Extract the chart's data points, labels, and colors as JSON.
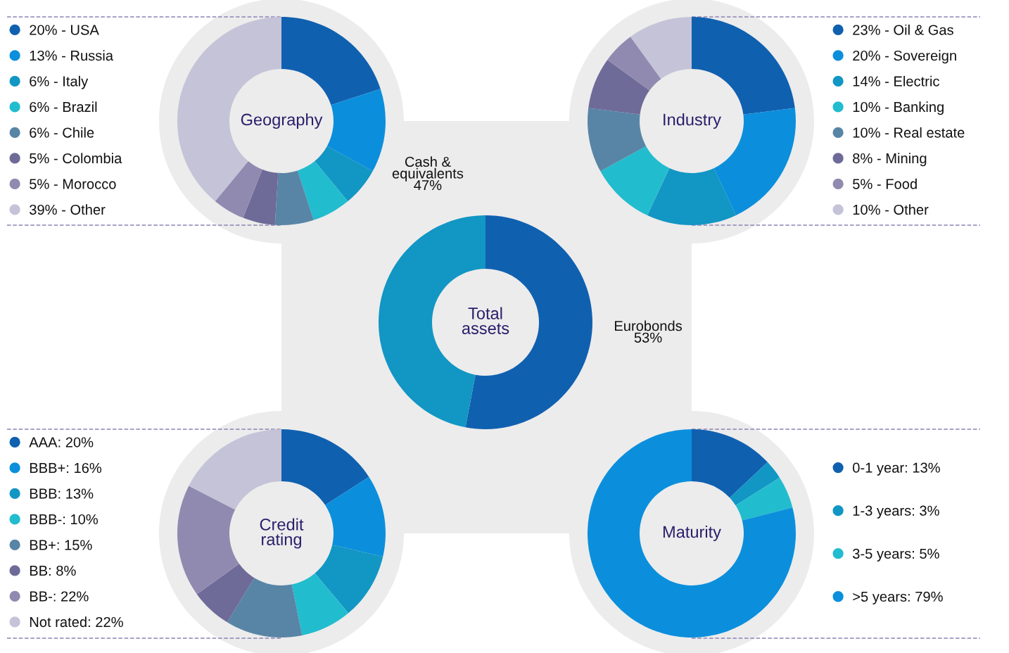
{
  "chart_data": [
    {
      "type": "donut",
      "title": "Geography",
      "legend": "left",
      "categories": [
        "20% - USA",
        "13% - Russia",
        "6% - Italy",
        "6% - Brazil",
        "6% - Chile",
        "5% - Colombia",
        "5% - Morocco",
        "39% - Other"
      ],
      "values": [
        20,
        13,
        6,
        6,
        6,
        5,
        5,
        39
      ],
      "colors": [
        "#1060b0",
        "#0b8fdc",
        "#1296c4",
        "#22bccf",
        "#5885a6",
        "#6e6b99",
        "#918ab0",
        "#c5c3d8"
      ]
    },
    {
      "type": "donut",
      "title": "Industry",
      "legend": "right",
      "categories": [
        "23% - Oil & Gas",
        "20% - Sovereign",
        "14% - Electric",
        "10% - Banking",
        "10% - Real estate",
        "8% - Mining",
        "5% - Food",
        "10% - Other"
      ],
      "values": [
        23,
        20,
        14,
        10,
        10,
        8,
        5,
        10
      ],
      "colors": [
        "#1060b0",
        "#0b8fdc",
        "#1296c4",
        "#22bccf",
        "#5885a6",
        "#6e6b99",
        "#918ab0",
        "#c5c3d8"
      ]
    },
    {
      "type": "donut",
      "title": "Total\nassets",
      "categories": [
        "Eurobonds",
        "Cash &\nequivalents"
      ],
      "values": [
        53,
        47
      ],
      "value_labels": [
        "53%",
        "47%"
      ],
      "colors": [
        "#1060b0",
        "#1296c4"
      ]
    },
    {
      "type": "donut",
      "title": "Credit\nrating",
      "legend": "left",
      "categories": [
        "AAA: 20%",
        "BBB+: 16%",
        "BBB: 13%",
        "BBB-: 10%",
        "BB+: 15%",
        "BB: 8%",
        "BB-: 22%",
        "Not rated: 22%"
      ],
      "values": [
        20,
        16,
        13,
        10,
        15,
        8,
        22,
        22
      ],
      "colors": [
        "#1060b0",
        "#0b8fdc",
        "#1296c4",
        "#22bccf",
        "#5885a6",
        "#6e6b99",
        "#918ab0",
        "#c5c3d8"
      ]
    },
    {
      "type": "donut",
      "title": "Maturity",
      "legend": "right",
      "categories": [
        "0-1 year: 13%",
        "1-3 years: 3%",
        "3-5 years: 5%",
        ">5 years: 79%"
      ],
      "values": [
        13,
        3,
        5,
        79
      ],
      "colors": [
        "#1060b0",
        "#1296c4",
        "#22bccf",
        "#0b8fdc"
      ]
    }
  ]
}
